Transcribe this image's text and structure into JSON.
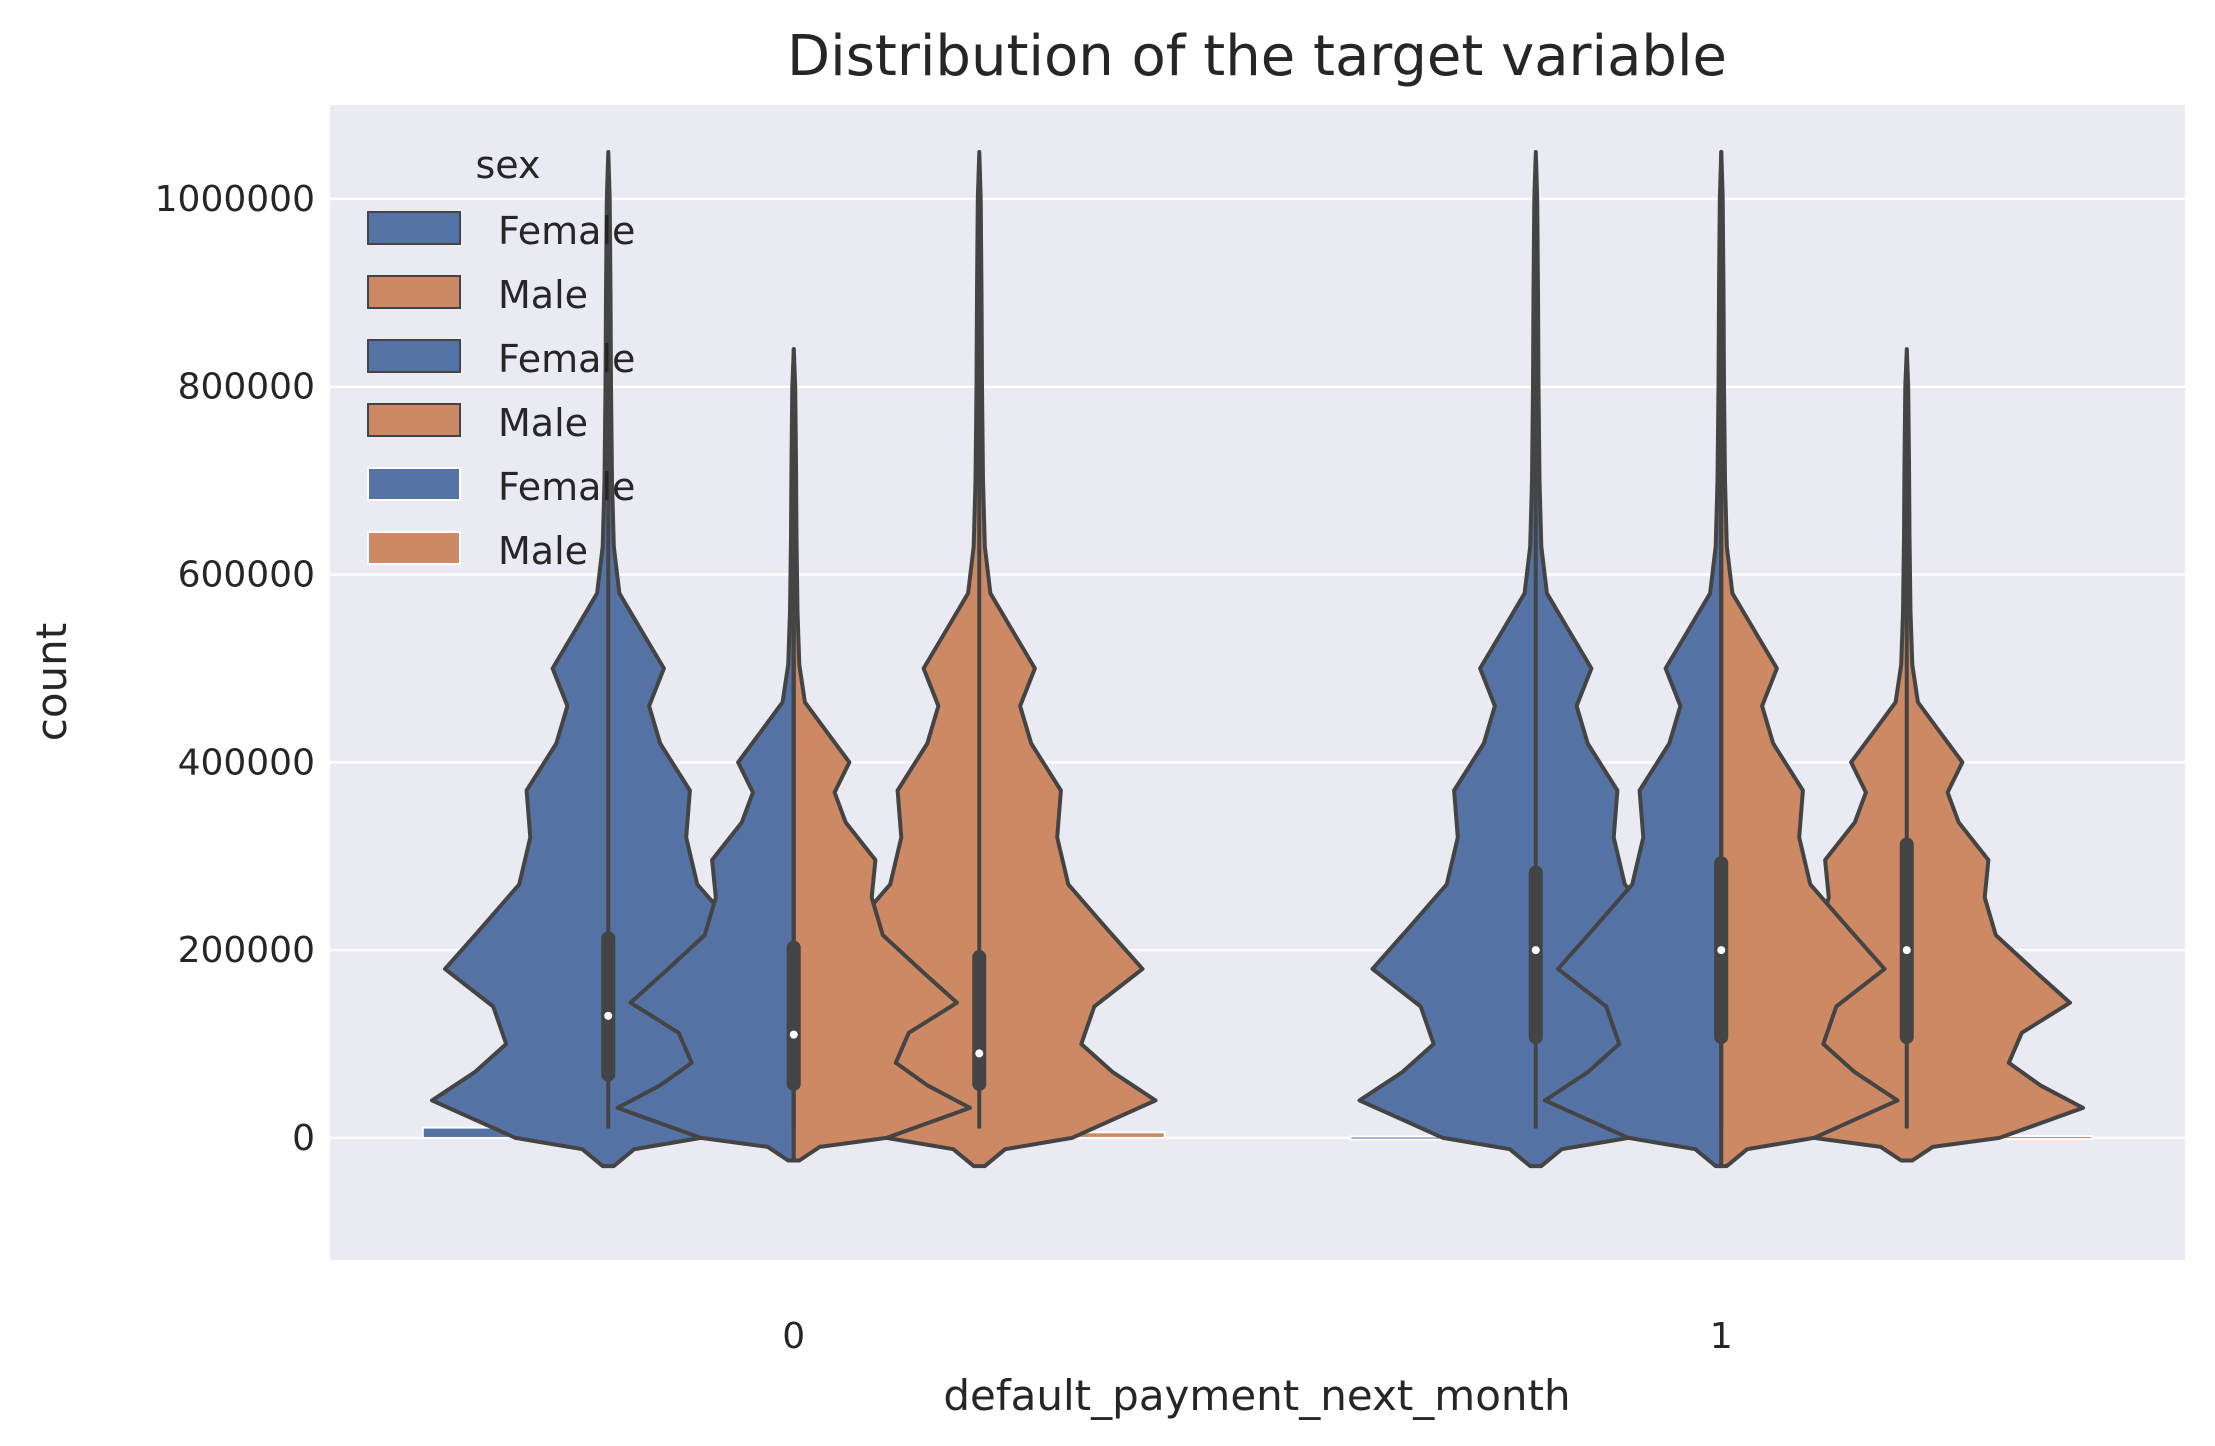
{
  "chart_data": {
    "type": "violin",
    "title": "Distribution of the target variable",
    "xlabel": "default_payment_next_month",
    "ylabel": "count",
    "categories": [
      "0",
      "1"
    ],
    "ylim": [
      -130000,
      1100000
    ],
    "yticks": [
      0,
      200000,
      400000,
      600000,
      800000,
      1000000
    ],
    "ytick_labels": [
      "0",
      "200000",
      "400000",
      "600000",
      "800000",
      "1000000"
    ],
    "grid": true,
    "legend": {
      "title": "sex",
      "placement": "top-left",
      "entries": [
        "Female",
        "Male",
        "Female",
        "Male",
        "Female",
        "Male"
      ]
    },
    "colors": {
      "Female": "#5572a4",
      "Male": "#cc8963",
      "background": "#eaeaf2",
      "line": "#444444"
    },
    "series": [
      {
        "name": "Female",
        "values": [
          11000,
          1500
        ]
      },
      {
        "name": "Male",
        "values": [
          6000,
          2000
        ]
      }
    ],
    "violins": [
      {
        "name": "Female",
        "category": "0",
        "layer": "left",
        "position": -0.2,
        "min": 10000,
        "max": 1000000,
        "q1": 60000,
        "median": 130000,
        "q3": 220000
      },
      {
        "name": "Male",
        "category": "0",
        "layer": "left",
        "position": 0.2,
        "min": 10000,
        "max": 1000000,
        "q1": 50000,
        "median": 90000,
        "q3": 200000
      },
      {
        "name": "Female",
        "category": "1",
        "layer": "left",
        "position": -0.2,
        "min": 10000,
        "max": 1000000,
        "q1": 100000,
        "median": 200000,
        "q3": 290000
      },
      {
        "name": "Male",
        "category": "1",
        "layer": "left",
        "position": 0.2,
        "min": 10000,
        "max": 800000,
        "q1": 100000,
        "median": 200000,
        "q3": 320000
      },
      {
        "name": "Female",
        "category": "0",
        "layer": "split",
        "position": 0.0,
        "min": 10000,
        "max": 800000,
        "q1": 50000,
        "median": 110000,
        "q3": 210000
      },
      {
        "name": "Male",
        "category": "0",
        "layer": "split",
        "position": 0.0,
        "min": 10000,
        "max": 800000,
        "q1": 50000,
        "median": 110000,
        "q3": 210000
      },
      {
        "name": "Female",
        "category": "1",
        "layer": "split",
        "position": 0.0,
        "min": 10000,
        "max": 1000000,
        "q1": 100000,
        "median": 200000,
        "q3": 300000
      },
      {
        "name": "Male",
        "category": "1",
        "layer": "split",
        "position": 0.0,
        "min": 10000,
        "max": 1000000,
        "q1": 100000,
        "median": 200000,
        "q3": 300000
      }
    ]
  }
}
